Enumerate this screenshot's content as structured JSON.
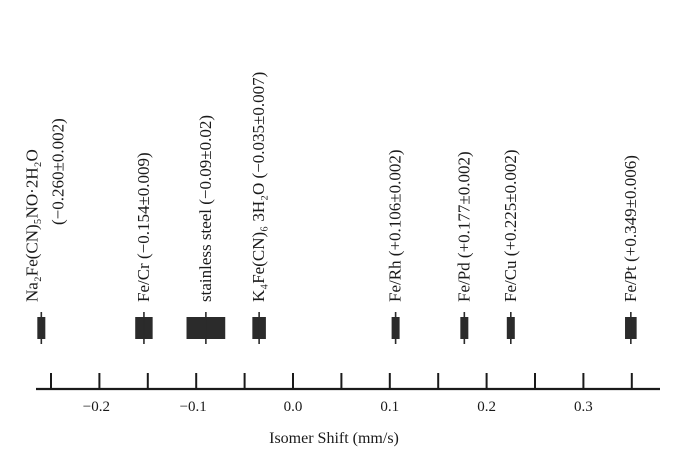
{
  "chart_data": {
    "type": "scatter",
    "xlabel": "Isomer Shift (mm/s)",
    "xlim": [
      -0.28,
      0.38
    ],
    "major_ticks": [
      -0.25,
      -0.2,
      -0.15,
      -0.1,
      -0.05,
      0.0,
      0.05,
      0.1,
      0.15,
      0.2,
      0.25,
      0.3,
      0.35
    ],
    "tick_labels": [
      {
        "value": -0.2,
        "text": "−0.2"
      },
      {
        "value": -0.1,
        "text": "−0.1"
      },
      {
        "value": 0.0,
        "text": "0.0"
      },
      {
        "value": 0.1,
        "text": "0.1"
      },
      {
        "value": 0.2,
        "text": "0.2"
      },
      {
        "value": 0.3,
        "text": "0.3"
      }
    ],
    "points": [
      {
        "value": -0.26,
        "error": 0.002,
        "label_line1": "Na₂Fe(CN)₅NO·2H₂O",
        "label_line2": "(−0.260±0.002)"
      },
      {
        "value": -0.154,
        "error": 0.009,
        "label_line1": "Fe/Cr  (−0.154±0.009)"
      },
      {
        "value": -0.09,
        "error": 0.02,
        "label_line1": "stainless steel  (−0.09±0.02)"
      },
      {
        "value": -0.035,
        "error": 0.007,
        "label_line1": "K₄Fe(CN)₆ 3H₂O  (−0.035±0.007)"
      },
      {
        "value": 0.106,
        "error": 0.002,
        "label_line1": "Fe/Rh  (+0.106±0.002)"
      },
      {
        "value": 0.177,
        "error": 0.002,
        "label_line1": "Fe/Pd  (+0.177±0.002)"
      },
      {
        "value": 0.225,
        "error": 0.002,
        "label_line1": "Fe/Cu  (+0.225±0.002)"
      },
      {
        "value": 0.349,
        "error": 0.006,
        "label_line1": "Fe/Pt  (+0.349±0.006)"
      }
    ]
  },
  "colors": {
    "ink": "#1a1a1a",
    "marker": "#2b2b2b",
    "background": "#ffffff"
  }
}
